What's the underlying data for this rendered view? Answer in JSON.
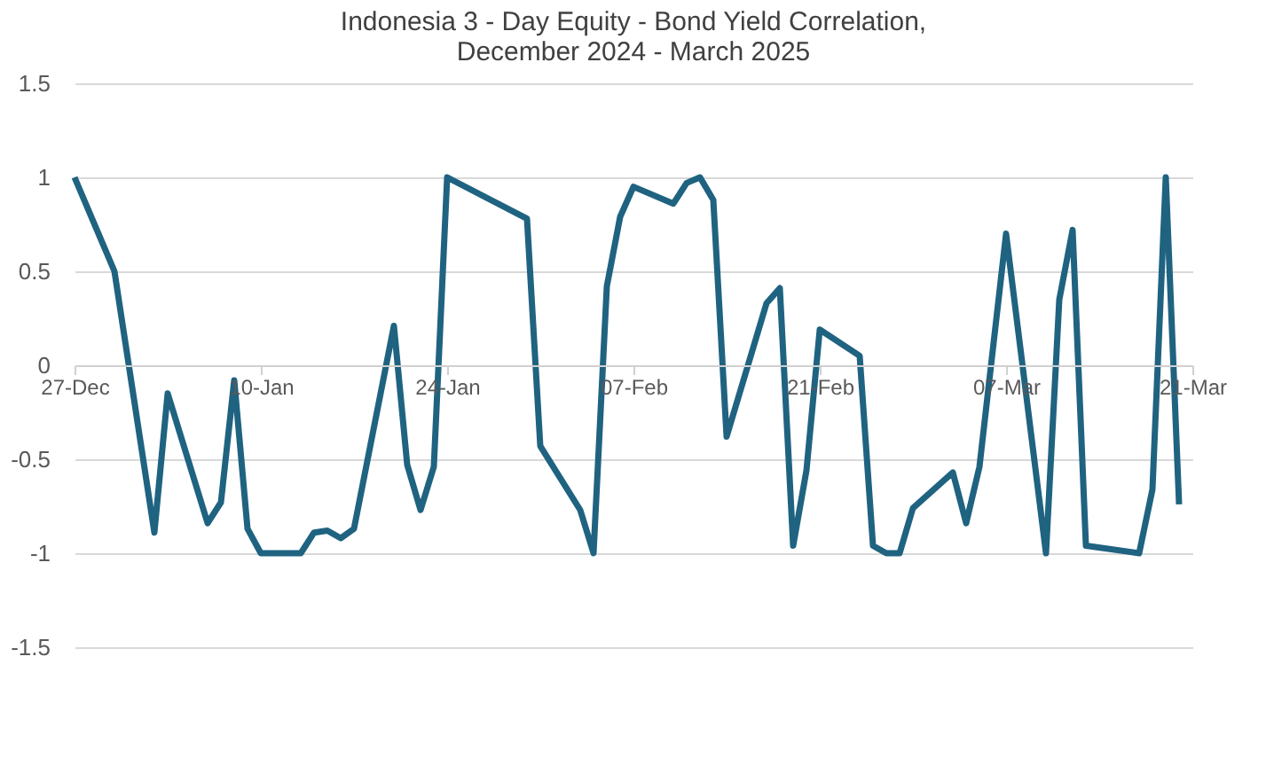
{
  "chart_data": {
    "type": "line",
    "title": "Indonesia 3 - Day Equity - Bond Yield Correlation,\nDecember 2024 - March 2025",
    "x": [
      "2024-12-27",
      "2024-12-30",
      "2025-01-02",
      "2025-01-03",
      "2025-01-06",
      "2025-01-07",
      "2025-01-08",
      "2025-01-09",
      "2025-01-10",
      "2025-01-13",
      "2025-01-14",
      "2025-01-15",
      "2025-01-16",
      "2025-01-17",
      "2025-01-20",
      "2025-01-21",
      "2025-01-22",
      "2025-01-23",
      "2025-01-24",
      "2025-01-30",
      "2025-01-31",
      "2025-02-03",
      "2025-02-04",
      "2025-02-05",
      "2025-02-06",
      "2025-02-07",
      "2025-02-10",
      "2025-02-11",
      "2025-02-12",
      "2025-02-13",
      "2025-02-14",
      "2025-02-17",
      "2025-02-18",
      "2025-02-19",
      "2025-02-20",
      "2025-02-21",
      "2025-02-24",
      "2025-02-25",
      "2025-02-26",
      "2025-02-27",
      "2025-02-28",
      "2025-03-03",
      "2025-03-04",
      "2025-03-05",
      "2025-03-07",
      "2025-03-10",
      "2025-03-11",
      "2025-03-12",
      "2025-03-13",
      "2025-03-17",
      "2025-03-18",
      "2025-03-19",
      "2025-03-20"
    ],
    "series": [
      {
        "color": "#1f6381",
        "values": [
          1.0,
          0.5,
          -0.89,
          -0.15,
          -0.84,
          -0.73,
          -0.08,
          -0.87,
          -1.0,
          -1.0,
          -0.89,
          -0.88,
          -0.92,
          -0.87,
          0.21,
          -0.53,
          -0.77,
          -0.54,
          1.0,
          0.78,
          -0.43,
          -0.77,
          -1.0,
          0.42,
          0.79,
          0.95,
          0.86,
          0.97,
          1.0,
          0.88,
          -0.38,
          0.33,
          0.41,
          -0.96,
          -0.56,
          0.19,
          0.05,
          -0.96,
          -1.0,
          -1.0,
          -0.76,
          -0.57,
          -0.84,
          -0.54,
          0.7,
          -1.0,
          0.35,
          0.72,
          -0.96,
          -1.0,
          -0.66,
          1.0,
          -0.74
        ]
      }
    ],
    "xlim": [
      "2024-12-27",
      "2025-03-21"
    ],
    "xticks": [
      {
        "value": "2024-12-27",
        "label": "27-Dec"
      },
      {
        "value": "2025-01-10",
        "label": "10-Jan"
      },
      {
        "value": "2025-01-24",
        "label": "24-Jan"
      },
      {
        "value": "2025-02-07",
        "label": "07-Feb"
      },
      {
        "value": "2025-02-21",
        "label": "21-Feb"
      },
      {
        "value": "2025-03-07",
        "label": "07-Mar"
      },
      {
        "value": "2025-03-21",
        "label": "21-Mar"
      }
    ],
    "ylim": [
      -1.5,
      1.5
    ],
    "yticks": [
      -1.5,
      -1,
      -0.5,
      0,
      0.5,
      1,
      1.5
    ],
    "grid": "y",
    "marker": "none",
    "line_style": "solid"
  }
}
